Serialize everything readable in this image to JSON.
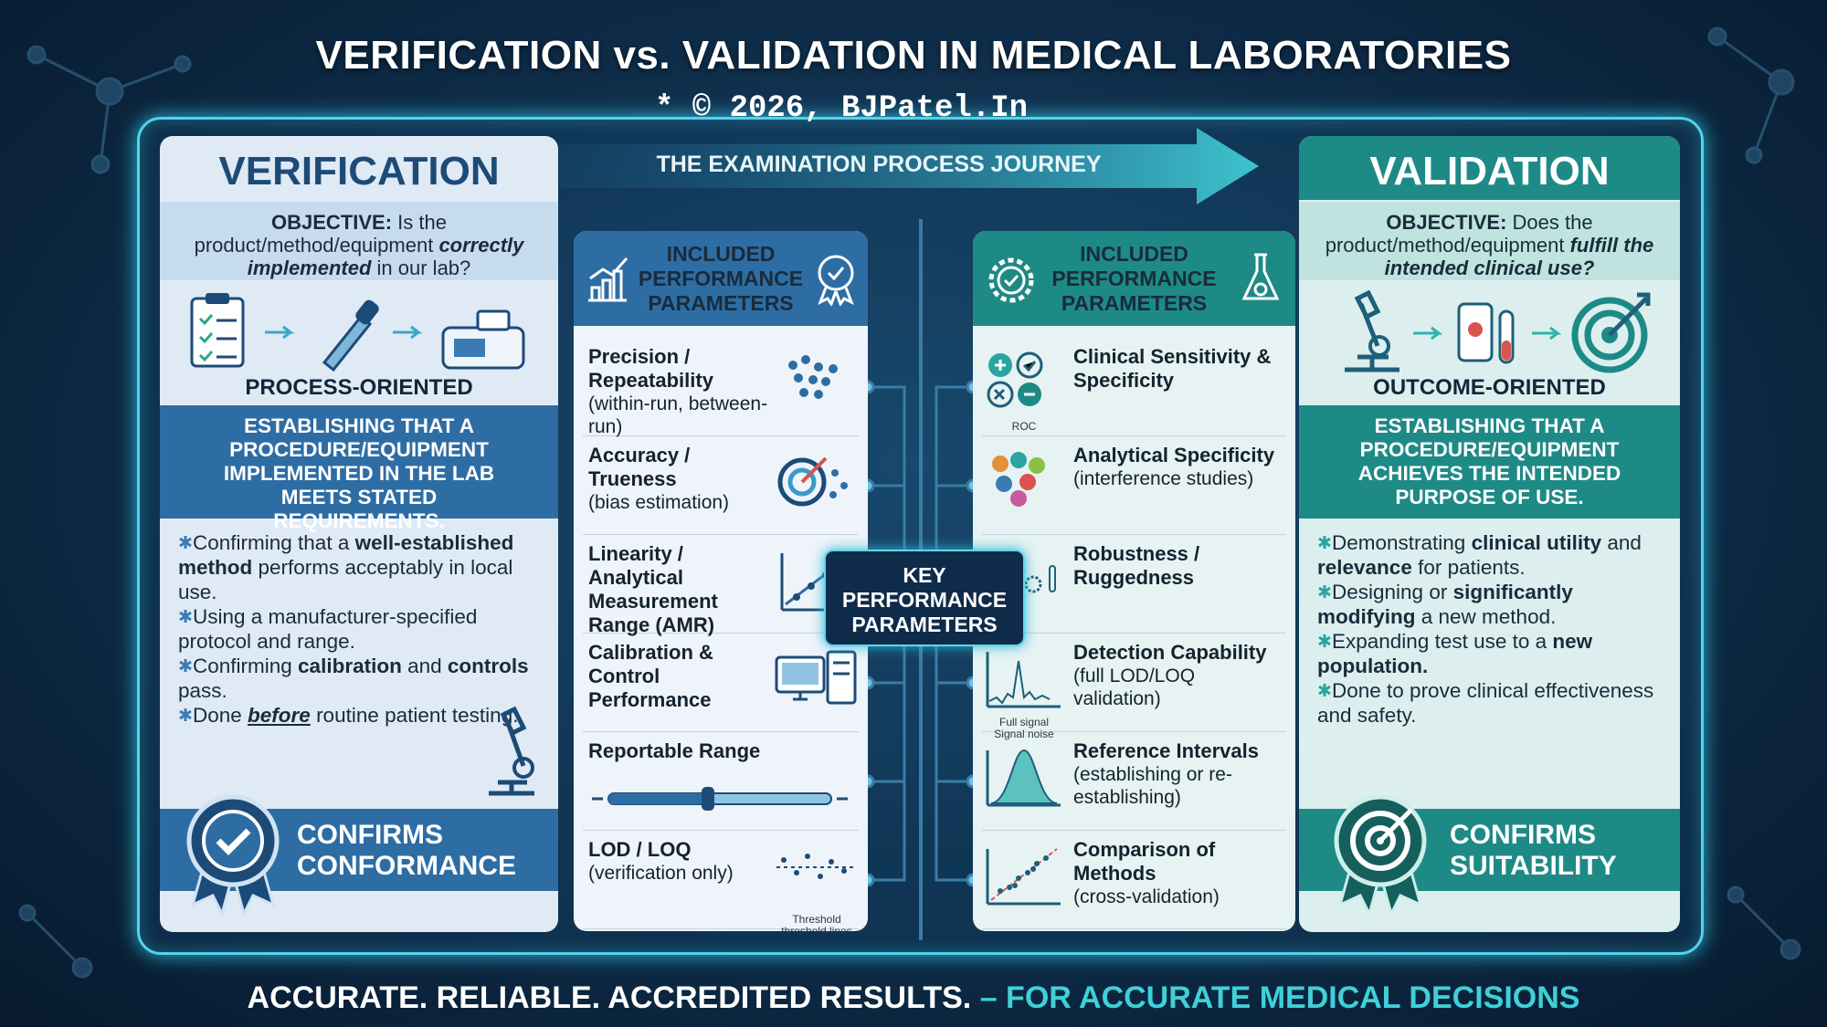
{
  "header": {
    "title": "VERIFICATION vs. VALIDATION IN MEDICAL LABORATORIES",
    "copyright": "* © 2026, BJPatel.In",
    "banner": "THE EXAMINATION PROCESS JOURNEY"
  },
  "verification": {
    "title": "VERIFICATION",
    "objective": [
      {
        "text": "OBJECTIVE:",
        "style": "bold"
      },
      " Is the product/method/equipment ",
      {
        "text": "correctly implemented",
        "style": "bold-italic"
      },
      " in our lab?"
    ],
    "orientation": "PROCESS-ORIENTED",
    "definition": "ESTABLISHING THAT A PROCEDURE/EQUIPMENT IMPLEMENTED IN THE LAB MEETS STATED REQUIREMENTS.",
    "bullets": [
      [
        "Confirming that a ",
        {
          "text": "well-established method",
          "style": "bold"
        },
        " performs acceptably in local use."
      ],
      [
        "Using a manufacturer-specified protocol and range."
      ],
      [
        "Confirming ",
        {
          "text": "calibration",
          "style": "bold"
        },
        " and ",
        {
          "text": "controls",
          "style": "bold"
        },
        " pass."
      ],
      [
        "Done ",
        {
          "text": "before",
          "style": "bold-italic-underline"
        },
        " routine patient testing."
      ]
    ],
    "outcome": "CONFIRMS CONFORMANCE"
  },
  "validation": {
    "title": "VALIDATION",
    "objective": [
      {
        "text": "OBJECTIVE:",
        "style": "bold"
      },
      " Does the product/method/equipment ",
      {
        "text": "fulfill the intended clinical use?",
        "style": "bold-italic"
      }
    ],
    "orientation": "OUTCOME-ORIENTED",
    "definition": "ESTABLISHING THAT A PROCEDURE/EQUIPMENT ACHIEVES THE INTENDED PURPOSE OF USE.",
    "bullets": [
      [
        "Demonstrating ",
        {
          "text": "clinical utility",
          "style": "bold"
        },
        " and ",
        {
          "text": "relevance",
          "style": "bold"
        },
        " for patients."
      ],
      [
        "Designing or ",
        {
          "text": "significantly modifying",
          "style": "bold"
        },
        " a new method."
      ],
      [
        "Expanding test use to a ",
        {
          "text": "new population.",
          "style": "bold"
        }
      ],
      [
        "Done to prove clinical effectiveness and safety."
      ]
    ],
    "outcome": "CONFIRMS SUITABILITY"
  },
  "verification_parameters": {
    "heading": "INCLUDED PERFORMANCE PARAMETERS",
    "items": [
      {
        "name": "Precision / Repeatability",
        "note": "(within-run, between-run)"
      },
      {
        "name": "Accuracy / Trueness",
        "note": "(bias estimation)"
      },
      {
        "name": "Linearity / Analytical Measurement Range (AMR)"
      },
      {
        "name": "Calibration & Control Performance"
      },
      {
        "name": "Reportable Range"
      },
      {
        "name": "LOD / LOQ",
        "note": "(verification only)",
        "icon_labels": [
          "Threshold",
          "threshold lines"
        ]
      }
    ]
  },
  "validation_parameters": {
    "heading": "INCLUDED PERFORMANCE PARAMETERS",
    "items": [
      {
        "name": "Clinical Sensitivity & Specificity",
        "icon_labels": [
          "ROC"
        ]
      },
      {
        "name": "Analytical Specificity",
        "note": "(interference studies)"
      },
      {
        "name": "Robustness / Ruggedness"
      },
      {
        "name": "Detection Capability",
        "note": "(full LOD/LOQ validation)",
        "icon_labels": [
          "Full signal",
          "Signal noise"
        ]
      },
      {
        "name": "Reference Intervals",
        "note": "(establishing or re-establishing)"
      },
      {
        "name": "Comparison of Methods",
        "note": "(cross-validation)"
      }
    ]
  },
  "center_label": "KEY PERFORMANCE PARAMETERS",
  "footer": {
    "main": "ACCURATE. RELIABLE. ACCREDITED RESULTS.",
    "accent": "– FOR ACCURATE MEDICAL DECISIONS"
  }
}
